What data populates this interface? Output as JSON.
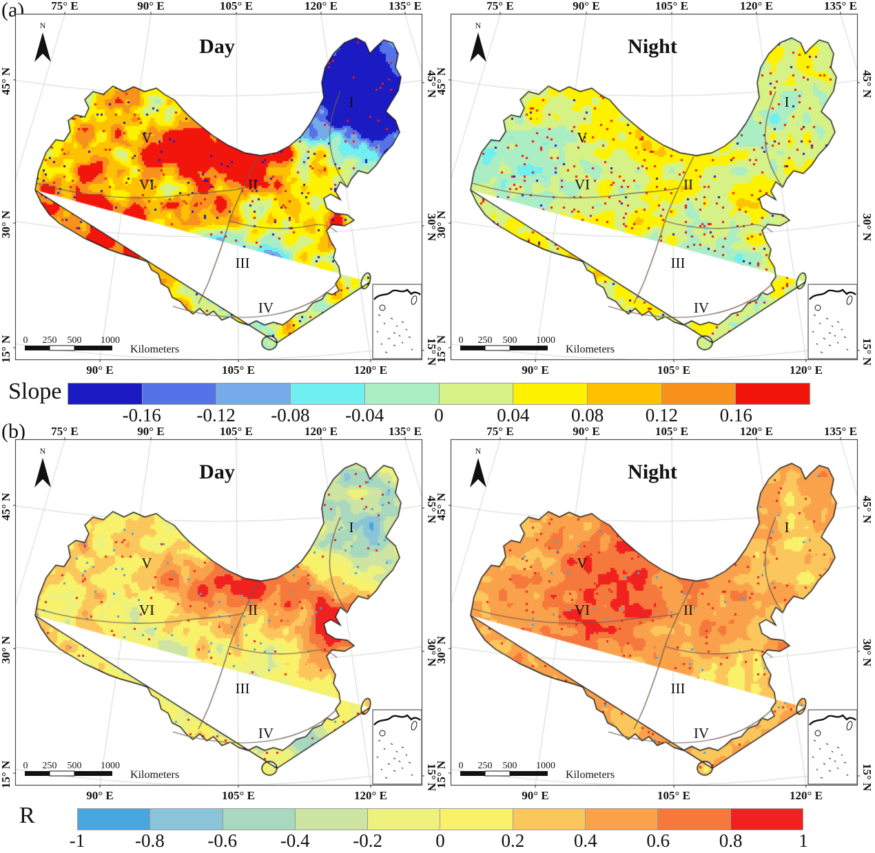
{
  "figure": {
    "panel_labels": {
      "a": "(a)",
      "b": "(b)"
    },
    "colorbars": [
      {
        "id": "slope",
        "title": "Slope",
        "tick_mode": "interior",
        "tick_labels": [
          "-0.16",
          "-0.12",
          "-0.08",
          "-0.04",
          "0",
          "0.04",
          "0.08",
          "0.12",
          "0.16"
        ],
        "colors": [
          "#1b1bc4",
          "#5572e8",
          "#74abe8",
          "#6fefef",
          "#abeec4",
          "#d6f286",
          "#fff200",
          "#fdc101",
          "#f8921c",
          "#f2150c"
        ]
      },
      {
        "id": "r",
        "title": "R",
        "tick_mode": "edges",
        "tick_labels": [
          "-1",
          "-0.8",
          "-0.6",
          "-0.4",
          "-0.2",
          "0",
          "0.2",
          "0.4",
          "0.6",
          "0.8",
          "1"
        ],
        "colors": [
          "#49a5de",
          "#8ac4d8",
          "#a8d8bd",
          "#cde4a2",
          "#eef27c",
          "#f9f169",
          "#fbc75c",
          "#faa14b",
          "#f5793c",
          "#f12120"
        ]
      }
    ]
  },
  "maps": [
    {
      "panel": "a",
      "title": "Day",
      "texture": {
        "seed": 11,
        "base": 0.6,
        "amp": 0.62,
        "speckle_hi": 0.012,
        "speckle_lo": 0.012,
        "blobs": [
          [
            0.8,
            0.18,
            0.2,
            0.17,
            -0.7
          ],
          [
            0.9,
            0.32,
            0.1,
            0.18,
            -0.4
          ],
          [
            0.68,
            0.3,
            0.09,
            0.1,
            -0.25
          ],
          [
            0.2,
            0.64,
            0.2,
            0.14,
            0.45
          ],
          [
            0.52,
            0.44,
            0.13,
            0.09,
            0.42
          ],
          [
            0.62,
            0.38,
            0.12,
            0.08,
            0.4
          ],
          [
            0.36,
            0.34,
            0.18,
            0.1,
            0.22
          ],
          [
            0.57,
            0.71,
            0.11,
            0.09,
            -0.25
          ],
          [
            0.78,
            0.62,
            0.07,
            0.09,
            0.22
          ],
          [
            0.12,
            0.42,
            0.1,
            0.1,
            0.18
          ]
        ]
      }
    },
    {
      "panel": "a",
      "title": "Night",
      "texture": {
        "seed": 22,
        "base": 0.58,
        "amp": 0.34,
        "speckle_hi": 0.02,
        "speckle_lo": 0.006,
        "blobs": [
          [
            0.18,
            0.42,
            0.16,
            0.12,
            -0.2
          ],
          [
            0.62,
            0.68,
            0.13,
            0.11,
            -0.15
          ],
          [
            0.8,
            0.28,
            0.13,
            0.15,
            -0.12
          ],
          [
            0.38,
            0.3,
            0.16,
            0.09,
            0.1
          ],
          [
            0.52,
            0.48,
            0.25,
            0.2,
            0.05
          ]
        ]
      }
    },
    {
      "panel": "b",
      "title": "Day",
      "texture": {
        "seed": 33,
        "base": 0.56,
        "amp": 0.42,
        "speckle_hi": 0.008,
        "speckle_lo": 0.008,
        "blobs": [
          [
            0.86,
            0.22,
            0.16,
            0.18,
            -0.35
          ],
          [
            0.53,
            0.42,
            0.18,
            0.08,
            0.4
          ],
          [
            0.78,
            0.55,
            0.09,
            0.12,
            0.45
          ],
          [
            0.58,
            0.76,
            0.16,
            0.1,
            -0.28
          ],
          [
            0.73,
            0.89,
            0.09,
            0.06,
            -0.28
          ],
          [
            0.3,
            0.58,
            0.14,
            0.12,
            -0.1
          ],
          [
            0.15,
            0.35,
            0.12,
            0.1,
            0.1
          ]
        ]
      }
    },
    {
      "panel": "b",
      "title": "Night",
      "texture": {
        "seed": 44,
        "base": 0.7,
        "amp": 0.3,
        "speckle_hi": 0.012,
        "speckle_lo": 0.004,
        "blobs": [
          [
            0.45,
            0.33,
            0.22,
            0.13,
            0.16
          ],
          [
            0.3,
            0.52,
            0.18,
            0.13,
            0.1
          ],
          [
            0.62,
            0.72,
            0.13,
            0.1,
            -0.15
          ],
          [
            0.85,
            0.32,
            0.1,
            0.14,
            -0.08
          ],
          [
            0.55,
            0.55,
            0.3,
            0.25,
            0.05
          ]
        ]
      }
    }
  ],
  "map_chrome": {
    "top_ticks": [
      "75° E",
      "90° E",
      "105° E",
      "120° E",
      "135° E"
    ],
    "bottom_ticks": [
      "90° E",
      "105° E",
      "120° E"
    ],
    "left_ticks": [
      "45° N",
      "30° N",
      "15° N"
    ],
    "right_ticks": [
      "45° N",
      "30° N",
      "15° N"
    ],
    "region_labels": [
      "I",
      "II",
      "III",
      "IV",
      "V",
      "VI"
    ],
    "north_arrow_label": "N",
    "scalebar": {
      "tick_labels": [
        "0",
        "250",
        "500",
        "1000"
      ],
      "unit": "Kilometers"
    }
  }
}
